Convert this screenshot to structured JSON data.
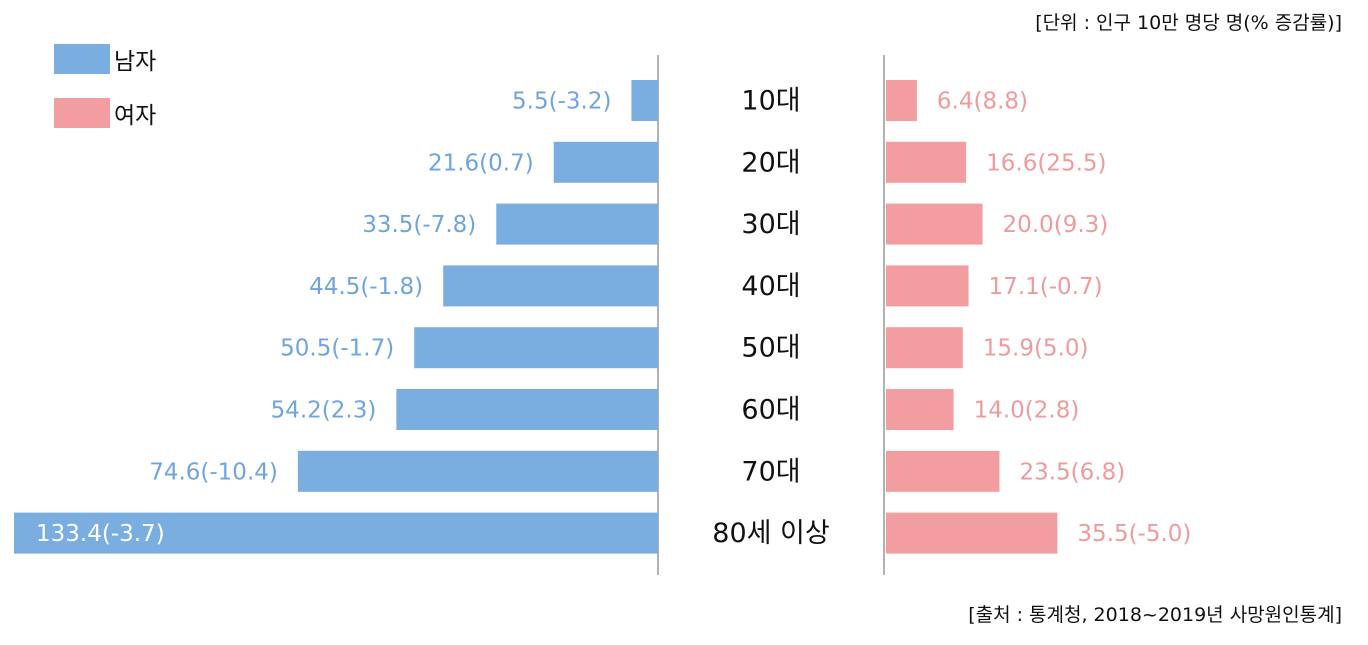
{
  "unit_note": "[단위 : 인구 10만 명당 명(% 증감률)]",
  "source_note": "[출처 : 통계청, 2018~2019년 사망원인통계]",
  "legend": {
    "male_label": "남자",
    "female_label": "여자"
  },
  "colors": {
    "male": "#7aaee0",
    "male_text": "#6fa5dc",
    "female": "#f29ea0",
    "female_text": "#ef9b9e",
    "axis": "#999999"
  },
  "chart_data": {
    "type": "bar",
    "orientation": "horizontal-butterfly",
    "categories": [
      "10대",
      "20대",
      "30대",
      "40대",
      "50대",
      "60대",
      "70대",
      "80세 이상"
    ],
    "series": [
      {
        "name": "남자",
        "values": [
          5.5,
          21.6,
          33.5,
          44.5,
          50.5,
          54.2,
          74.6,
          133.4
        ],
        "change_pct": [
          -3.2,
          0.7,
          -7.8,
          -1.8,
          -1.7,
          2.3,
          -10.4,
          -3.7
        ],
        "labels": [
          "5.5(-3.2)",
          "21.6(0.7)",
          "33.5(-7.8)",
          "44.5(-1.8)",
          "50.5(-1.7)",
          "54.2(2.3)",
          "74.6(-10.4)",
          "133.4(-3.7)"
        ]
      },
      {
        "name": "여자",
        "values": [
          6.4,
          16.6,
          20.0,
          17.1,
          15.9,
          14.0,
          23.5,
          35.5
        ],
        "change_pct": [
          8.8,
          25.5,
          9.3,
          -0.7,
          5.0,
          2.8,
          6.8,
          -5.0
        ],
        "labels": [
          "6.4(8.8)",
          "16.6(25.5)",
          "20.0(9.3)",
          "17.1(-0.7)",
          "15.9(5.0)",
          "14.0(2.8)",
          "23.5(6.8)",
          "35.5(-5.0)"
        ]
      }
    ],
    "grid": false,
    "legend_position": "top-left"
  }
}
